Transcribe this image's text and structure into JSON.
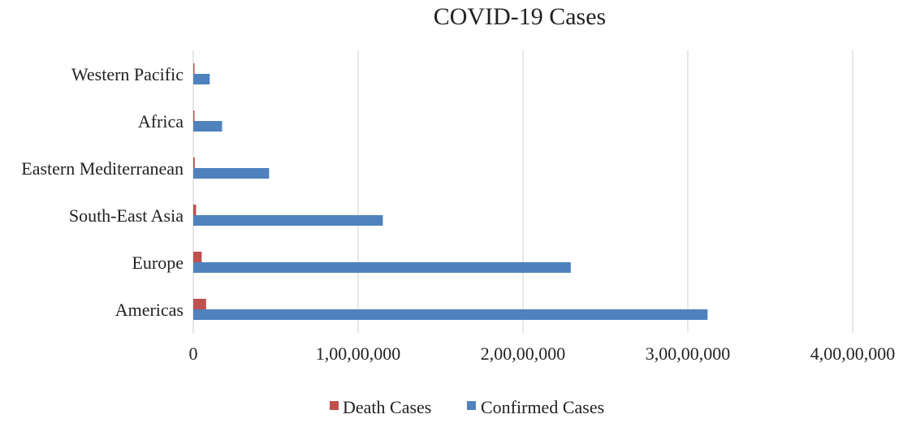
{
  "chart_data": {
    "type": "bar",
    "orientation": "horizontal",
    "title": "COVID-19 Cases",
    "xlabel": "",
    "ylabel": "",
    "categories": [
      "Americas",
      "Europe",
      "South-East Asia",
      "Eastern Mediterranean",
      "Africa",
      "Western Pacific"
    ],
    "series": [
      {
        "name": "Death Cases",
        "color": "#c0504d",
        "values": [
          780000,
          510000,
          170000,
          90000,
          35000,
          30000
        ]
      },
      {
        "name": "Confirmed Cases",
        "color": "#4f81bd",
        "values": [
          31200000,
          22900000,
          11500000,
          4600000,
          1750000,
          1000000
        ]
      }
    ],
    "xlim": [
      0,
      40000000
    ],
    "xticks": [
      0,
      10000000,
      20000000,
      30000000,
      40000000
    ],
    "xtick_labels": [
      "0",
      "1,00,00,000",
      "2,00,00,000",
      "3,00,00,000",
      "4,00,00,000"
    ],
    "gridlines": true,
    "legend_position": "bottom"
  }
}
